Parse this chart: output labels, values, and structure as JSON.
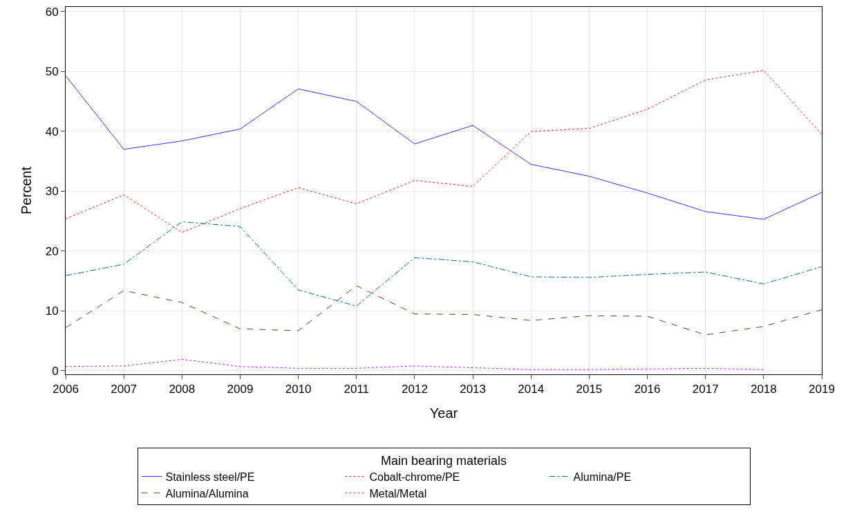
{
  "chart_data": {
    "type": "line",
    "xlabel": "Year",
    "ylabel": "Percent",
    "legend_title": "Main bearing materials",
    "x": [
      2006,
      2007,
      2008,
      2009,
      2010,
      2011,
      2012,
      2013,
      2014,
      2015,
      2016,
      2017,
      2018,
      2019
    ],
    "series": [
      {
        "name": "Stainless steel/PE",
        "color": "#3333ff",
        "line_style": "solid",
        "values": [
          49.3,
          37.0,
          38.4,
          40.4,
          47.1,
          45.0,
          37.9,
          41.0,
          34.5,
          32.5,
          29.7,
          26.6,
          25.3,
          29.8
        ]
      },
      {
        "name": "Cobalt-chrome/PE",
        "color": "#d42020",
        "line_style": "dotted",
        "values": [
          25.4,
          29.4,
          23.1,
          27.1,
          30.6,
          27.9,
          31.8,
          30.8,
          40.0,
          40.5,
          43.7,
          48.6,
          50.2,
          39.5
        ]
      },
      {
        "name": "Alumina/PE",
        "color": "#007878",
        "line_style": "dashdot",
        "values": [
          15.9,
          17.8,
          24.9,
          24.1,
          13.5,
          10.8,
          18.9,
          18.2,
          15.7,
          15.6,
          16.1,
          16.5,
          14.5,
          17.4
        ]
      },
      {
        "name": "Alumina/Alumina",
        "color": "#604020",
        "line_style": "dashed",
        "values": [
          7.2,
          13.4,
          11.4,
          7.0,
          6.7,
          14.2,
          9.5,
          9.4,
          8.4,
          9.2,
          9.1,
          6.0,
          7.4,
          10.2
        ]
      },
      {
        "name": "Metal/Metal",
        "color": "#a020f0",
        "line_style": "dotted",
        "values": [
          0.7,
          0.8,
          1.9,
          0.7,
          0.4,
          0.4,
          0.8,
          0.5,
          0.2,
          0.2,
          0.3,
          0.4,
          0.2,
          null
        ]
      }
    ],
    "xlim": [
      2006,
      2019
    ],
    "xticks": [
      2006,
      2007,
      2008,
      2009,
      2010,
      2011,
      2012,
      2013,
      2014,
      2015,
      2016,
      2017,
      2018,
      2019
    ],
    "ylim": [
      -0.6,
      60.8
    ],
    "yticks": [
      0,
      10,
      20,
      30,
      40,
      50,
      60
    ],
    "grid": true,
    "legend": "bottom",
    "marker": "none"
  }
}
